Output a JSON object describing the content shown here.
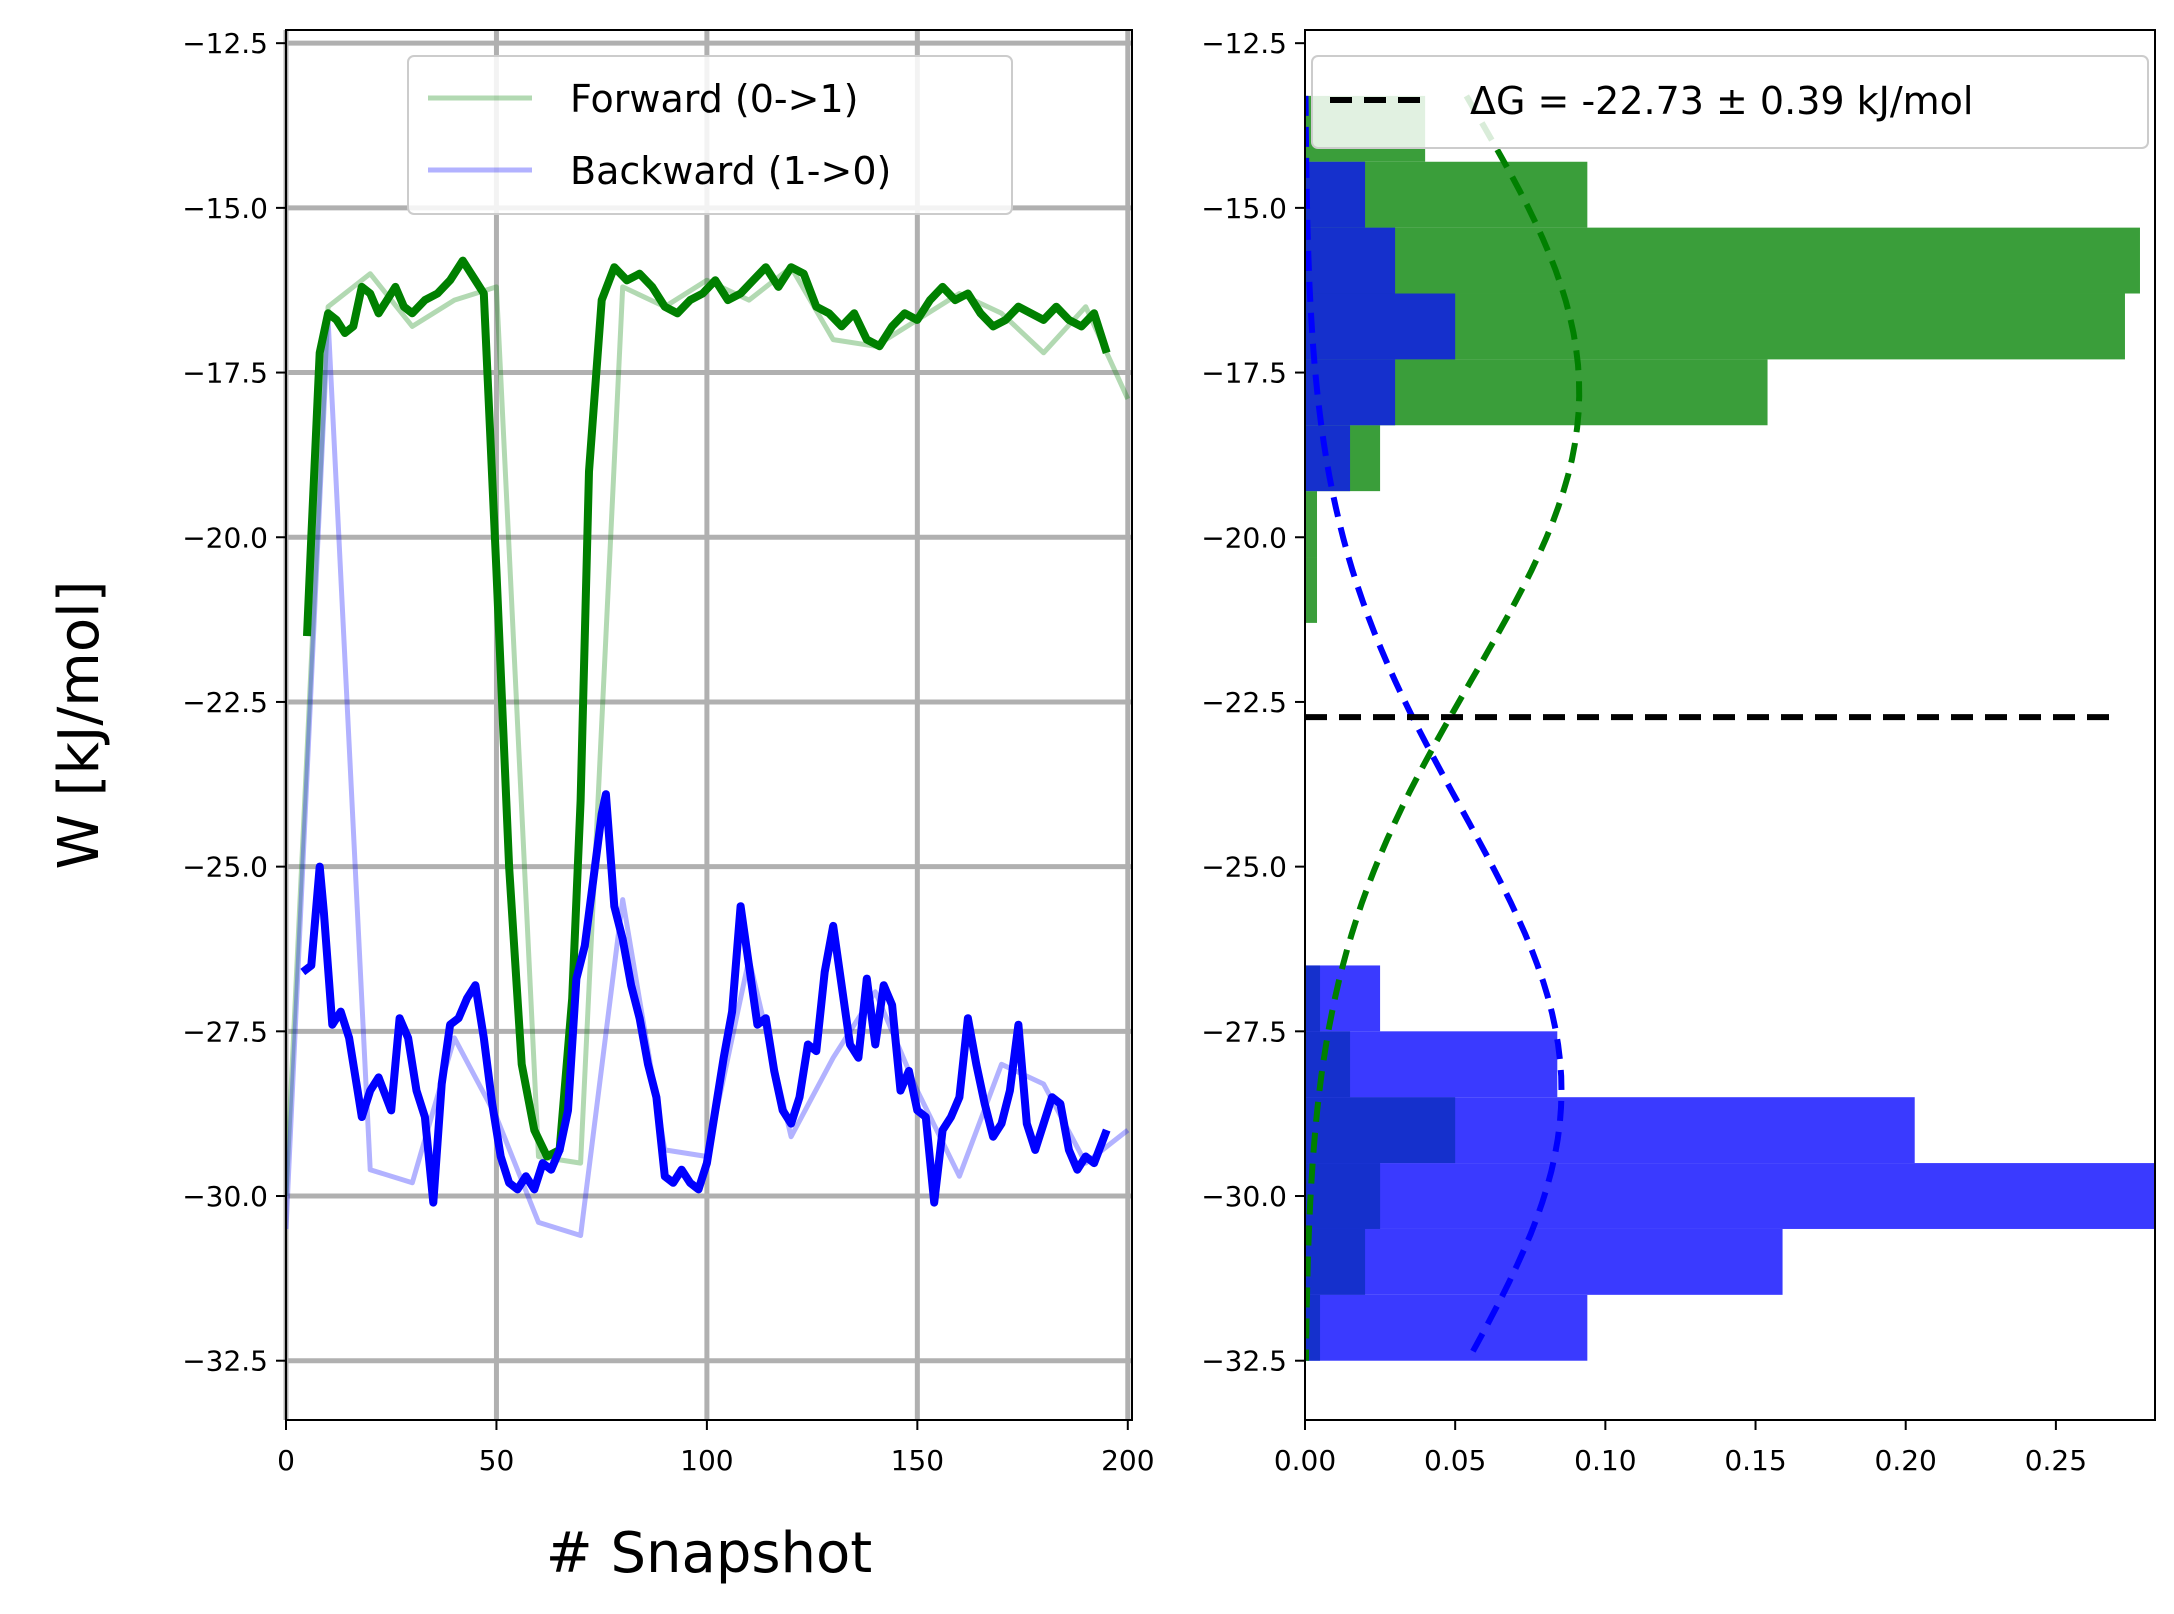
{
  "chart_data": [
    {
      "type": "line",
      "xlabel": "# Snapshot",
      "ylabel": "W [kJ/mol]",
      "xlim": [
        0,
        201
      ],
      "ylim": [
        -33.4,
        -12.3
      ],
      "xticks": [
        0,
        50,
        100,
        150,
        200
      ],
      "xtick_labels": [
        "0",
        "50",
        "100",
        "150",
        "200"
      ],
      "yticks": [
        -12.5,
        -15.0,
        -17.5,
        -20.0,
        -22.5,
        -25.0,
        -27.5,
        -30.0,
        -32.5
      ],
      "ytick_labels": [
        "−12.5",
        "−15.0",
        "−17.5",
        "−20.0",
        "−22.5",
        "−25.0",
        "−27.5",
        "−30.0",
        "−32.5"
      ],
      "grid": true,
      "legend_position": "top",
      "colors": {
        "forward": "#008000",
        "backward": "#0000ff",
        "grid": "#b0b0b0"
      },
      "series": [
        {
          "name": "Forward (0->1)",
          "style": "raw",
          "color": "#008000",
          "x": [
            0,
            10,
            20,
            30,
            40,
            50,
            60,
            70,
            80,
            90,
            100,
            110,
            120,
            130,
            140,
            150,
            160,
            170,
            180,
            190,
            200
          ],
          "y": [
            -30.0,
            -16.5,
            -16.0,
            -16.8,
            -16.4,
            -16.2,
            -29.4,
            -29.5,
            -16.2,
            -16.5,
            -16.1,
            -16.4,
            -15.9,
            -17.0,
            -17.1,
            -16.7,
            -16.3,
            -16.6,
            -17.2,
            -16.5,
            -17.9
          ]
        },
        {
          "name": "Backward (1->0)",
          "style": "raw",
          "color": "#0000ff",
          "x": [
            0,
            10,
            20,
            30,
            40,
            50,
            60,
            70,
            80,
            90,
            100,
            110,
            120,
            130,
            140,
            150,
            160,
            170,
            180,
            190,
            200
          ],
          "y": [
            -30.5,
            -16.7,
            -29.6,
            -29.8,
            -27.6,
            -28.8,
            -30.4,
            -30.6,
            -25.5,
            -29.3,
            -29.4,
            -26.4,
            -29.1,
            -27.9,
            -26.9,
            -28.4,
            -29.7,
            -28.0,
            -28.3,
            -29.5,
            -29.0
          ]
        },
        {
          "name": "",
          "style": "smoothed",
          "color": "#008000",
          "x": [
            5,
            6,
            8,
            10,
            12,
            14,
            16,
            18,
            20,
            22,
            24,
            26,
            28,
            30,
            33,
            36,
            39,
            42,
            45,
            47,
            50,
            53,
            56,
            59,
            62,
            65,
            68,
            70,
            72,
            75,
            78,
            81,
            84,
            87,
            90,
            93,
            96,
            99,
            102,
            105,
            108,
            111,
            114,
            117,
            120,
            123,
            126,
            129,
            132,
            135,
            138,
            141,
            144,
            147,
            150,
            153,
            156,
            159,
            162,
            165,
            168,
            171,
            174,
            177,
            180,
            183,
            186,
            189,
            192,
            195
          ],
          "y": [
            -21.5,
            -20.0,
            -17.2,
            -16.6,
            -16.7,
            -16.9,
            -16.8,
            -16.2,
            -16.3,
            -16.6,
            -16.4,
            -16.2,
            -16.5,
            -16.6,
            -16.4,
            -16.3,
            -16.1,
            -15.8,
            -16.1,
            -16.3,
            -20.5,
            -25.0,
            -28.0,
            -29.0,
            -29.4,
            -29.3,
            -27.0,
            -24.0,
            -19.0,
            -16.4,
            -15.9,
            -16.1,
            -16.0,
            -16.2,
            -16.5,
            -16.6,
            -16.4,
            -16.3,
            -16.1,
            -16.4,
            -16.3,
            -16.1,
            -15.9,
            -16.2,
            -15.9,
            -16.0,
            -16.5,
            -16.6,
            -16.8,
            -16.6,
            -17.0,
            -17.1,
            -16.8,
            -16.6,
            -16.7,
            -16.4,
            -16.2,
            -16.4,
            -16.3,
            -16.6,
            -16.8,
            -16.7,
            -16.5,
            -16.6,
            -16.7,
            -16.5,
            -16.7,
            -16.8,
            -16.6,
            -17.2
          ]
        },
        {
          "name": "",
          "style": "smoothed",
          "color": "#0000ff",
          "x": [
            4,
            6,
            8,
            9,
            11,
            13,
            15,
            17,
            18,
            20,
            22,
            25,
            27,
            29,
            31,
            33,
            35,
            37,
            39,
            41,
            43,
            45,
            47,
            49,
            51,
            53,
            55,
            57,
            59,
            61,
            63,
            65,
            67,
            69,
            71,
            73,
            75,
            76,
            78,
            80,
            82,
            84,
            86,
            88,
            90,
            92,
            94,
            96,
            98,
            100,
            102,
            104,
            106,
            108,
            110,
            112,
            114,
            116,
            118,
            120,
            122,
            124,
            126,
            128,
            130,
            132,
            134,
            136,
            138,
            140,
            142,
            144,
            146,
            148,
            150,
            152,
            154,
            156,
            158,
            160,
            162,
            164,
            166,
            168,
            170,
            172,
            174,
            176,
            178,
            180,
            182,
            184,
            186,
            188,
            190,
            192,
            195
          ],
          "y": [
            -26.6,
            -26.5,
            -25.0,
            -25.7,
            -27.4,
            -27.2,
            -27.6,
            -28.4,
            -28.8,
            -28.4,
            -28.2,
            -28.7,
            -27.3,
            -27.6,
            -28.4,
            -28.8,
            -30.1,
            -28.3,
            -27.4,
            -27.3,
            -27.0,
            -26.8,
            -27.6,
            -28.6,
            -29.4,
            -29.8,
            -29.9,
            -29.7,
            -29.9,
            -29.5,
            -29.6,
            -29.3,
            -28.7,
            -26.7,
            -26.2,
            -25.2,
            -24.2,
            -23.9,
            -25.6,
            -26.1,
            -26.8,
            -27.3,
            -28.0,
            -28.5,
            -29.7,
            -29.8,
            -29.6,
            -29.8,
            -29.9,
            -29.5,
            -28.7,
            -27.9,
            -27.2,
            -25.6,
            -26.5,
            -27.4,
            -27.3,
            -28.1,
            -28.7,
            -28.9,
            -28.5,
            -27.7,
            -27.8,
            -26.6,
            -25.9,
            -26.8,
            -27.7,
            -27.9,
            -26.7,
            -27.7,
            -26.8,
            -27.1,
            -28.4,
            -28.1,
            -28.7,
            -28.8,
            -30.1,
            -29.0,
            -28.8,
            -28.5,
            -27.3,
            -28.0,
            -28.6,
            -29.1,
            -28.9,
            -28.4,
            -27.4,
            -28.9,
            -29.3,
            -28.9,
            -28.5,
            -28.6,
            -29.3,
            -29.6,
            -29.4,
            -29.5,
            -29.0
          ]
        }
      ]
    },
    {
      "type": "bar",
      "orientation": "horizontal",
      "xlim": [
        0,
        0.283
      ],
      "ylim": [
        -33.4,
        -12.3
      ],
      "xticks": [
        0.0,
        0.05,
        0.1,
        0.15,
        0.2,
        0.25
      ],
      "xtick_labels": [
        "0.00",
        "0.05",
        "0.10",
        "0.15",
        "0.20",
        "0.25"
      ],
      "yticks": [
        -12.5,
        -15.0,
        -17.5,
        -20.0,
        -22.5,
        -25.0,
        -27.5,
        -30.0,
        -32.5
      ],
      "ytick_labels": [
        "−12.5",
        "−15.0",
        "−17.5",
        "−20.0",
        "−22.5",
        "−25.0",
        "−27.5",
        "−30.0",
        "−32.5"
      ],
      "grid": false,
      "legend_position": "top-right",
      "legend_label": "ΔG = -22.73 ± 0.39 kJ/mol",
      "delta_g_line": -22.73,
      "colors": {
        "forward": "#3a9e3a",
        "forward_dark": "#2a8a2a",
        "backward": "#3a3aff",
        "backward_dark": "#1a2ad8",
        "overlap": "#1530cc",
        "dashed": "#000000"
      },
      "series": [
        {
          "name": "Forward (0->1)",
          "color": "#3a9e3a",
          "bins": [
            {
              "y0": -13.3,
              "y1": -14.3,
              "value": 0.04
            },
            {
              "y0": -14.3,
              "y1": -15.3,
              "value": 0.094
            },
            {
              "y0": -15.3,
              "y1": -16.3,
              "value": 0.278
            },
            {
              "y0": -16.3,
              "y1": -17.3,
              "value": 0.273
            },
            {
              "y0": -17.3,
              "y1": -18.3,
              "value": 0.154
            },
            {
              "y0": -18.3,
              "y1": -19.3,
              "value": 0.025
            },
            {
              "y0": -19.3,
              "y1": -20.3,
              "value": 0.004
            },
            {
              "y0": -20.3,
              "y1": -21.3,
              "value": 0.004
            }
          ]
        },
        {
          "name": "Backward (1->0)",
          "color": "#3a3aff",
          "bins": [
            {
              "y0": -26.5,
              "y1": -27.5,
              "value": 0.025
            },
            {
              "y0": -27.5,
              "y1": -28.5,
              "value": 0.084
            },
            {
              "y0": -28.5,
              "y1": -29.5,
              "value": 0.203
            },
            {
              "y0": -29.5,
              "y1": -30.5,
              "value": 0.283
            },
            {
              "y0": -30.5,
              "y1": -31.5,
              "value": 0.159
            },
            {
              "y0": -31.5,
              "y1": -32.5,
              "value": 0.094
            }
          ]
        },
        {
          "name": "",
          "color": "#1530cc",
          "style": "overlap",
          "bins": [
            {
              "y0": -14.3,
              "y1": -15.3,
              "value": 0.02
            },
            {
              "y0": -15.3,
              "y1": -16.3,
              "value": 0.03
            },
            {
              "y0": -16.3,
              "y1": -17.3,
              "value": 0.05
            },
            {
              "y0": -17.3,
              "y1": -18.3,
              "value": 0.03
            },
            {
              "y0": -18.3,
              "y1": -19.3,
              "value": 0.015
            },
            {
              "y0": -26.5,
              "y1": -27.5,
              "value": 0.005
            },
            {
              "y0": -27.5,
              "y1": -28.5,
              "value": 0.015
            },
            {
              "y0": -28.5,
              "y1": -29.5,
              "value": 0.05
            },
            {
              "y0": -29.5,
              "y1": -30.5,
              "value": 0.025
            },
            {
              "y0": -30.5,
              "y1": -31.5,
              "value": 0.02
            },
            {
              "y0": -31.5,
              "y1": -32.5,
              "value": 0.005
            }
          ]
        }
      ],
      "gaussians": [
        {
          "name": "",
          "color": "#008000",
          "mean": -17.8,
          "sigma": 4.37,
          "amplitude": 0.0913,
          "y_from": -13.3,
          "y_to": -32.5
        },
        {
          "name": "",
          "color": "#0000ff",
          "mean": -28.4,
          "sigma": 4.3,
          "amplitude": 0.0854,
          "y_from": -13.3,
          "y_to": -32.5
        }
      ]
    }
  ]
}
